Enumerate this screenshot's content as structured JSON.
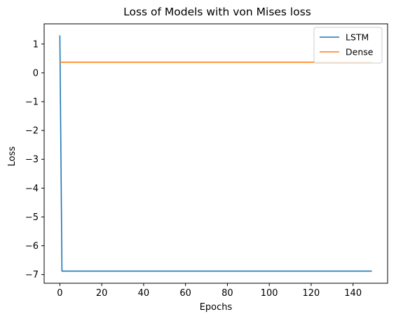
{
  "chart_data": {
    "type": "line",
    "title": "Loss of Models with von Mises loss",
    "xlabel": "Epochs",
    "ylabel": "Loss",
    "xlim": [
      -7.5,
      156.5
    ],
    "ylim": [
      -7.3,
      1.7
    ],
    "xticks": [
      0,
      20,
      40,
      60,
      80,
      100,
      120,
      140
    ],
    "yticks": [
      1,
      0,
      -1,
      -2,
      -3,
      -4,
      -5,
      -6,
      -7
    ],
    "grid": false,
    "legend_position": "top-right",
    "series": [
      {
        "name": "LSTM",
        "color": "#1f77b4",
        "x": [
          0,
          1,
          2,
          149
        ],
        "y": [
          1.3,
          -6.88,
          -6.88,
          -6.88
        ]
      },
      {
        "name": "Dense",
        "color": "#ff7f0e",
        "x": [
          0,
          149
        ],
        "y": [
          0.37,
          0.37
        ]
      }
    ]
  }
}
